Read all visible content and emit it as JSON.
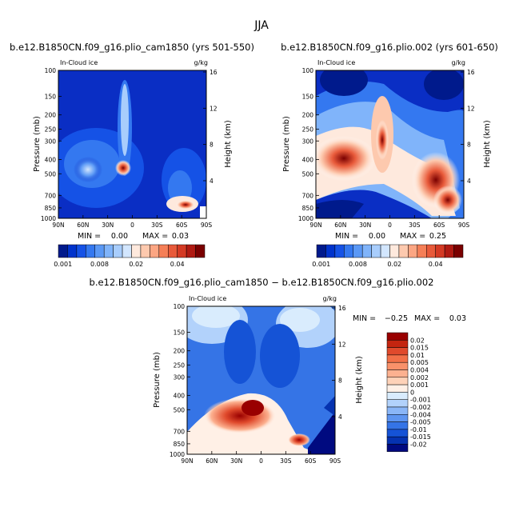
{
  "figure": {
    "title": "JJA"
  },
  "colorbars": {
    "top_labels": [
      "0.001",
      "0.008",
      "0.02",
      "0.04"
    ],
    "top_colors": [
      "#001a8c",
      "#0033cc",
      "#1552e6",
      "#3478f0",
      "#5a98f5",
      "#80b4fa",
      "#a8cdfc",
      "#d2e6fe",
      "#fee9dd",
      "#fdc9ae",
      "#fca683",
      "#f57f57",
      "#e85a3a",
      "#d43a24",
      "#b01a12",
      "#7a0000"
    ],
    "diff_labels": [
      "0.02",
      "0.015",
      "0.01",
      "0.005",
      "0.004",
      "0.002",
      "0.001",
      "0",
      "-0.001",
      "-0.002",
      "-0.004",
      "-0.005",
      "-0.01",
      "-0.015",
      "-0.02"
    ],
    "diff_colors": [
      "#990000",
      "#c42510",
      "#e04a2c",
      "#f27048",
      "#f9916a",
      "#fcb190",
      "#fed2b8",
      "#fff0e6",
      "#d9ecfd",
      "#b2d2fb",
      "#8ab6f7",
      "#5e95f0",
      "#3574e6",
      "#1553d6",
      "#0532b0",
      "#000a80"
    ]
  },
  "chart_data": [
    {
      "type": "heatmap",
      "title": "b.e12.B1850CN.f09_g16.plio_cam1850 (yrs 501-550)",
      "field_label": "In-Cloud ice",
      "units": "g/kg",
      "ylabel": "Pressure (mb)",
      "y2label": "Height (km)",
      "x_ticks": [
        "90N",
        "60N",
        "30N",
        "0",
        "30S",
        "60S",
        "90S"
      ],
      "y_ticks": [
        "100",
        "150",
        "200",
        "250",
        "300",
        "400",
        "500",
        "700",
        "850",
        "1000"
      ],
      "y2_ticks": [
        "16",
        "12",
        "8",
        "4"
      ],
      "min_label": "MIN =",
      "min": "0.00",
      "max_label": "MAX =",
      "max": "0.03",
      "ylim": [
        1000,
        100
      ]
    },
    {
      "type": "heatmap",
      "title": "b.e12.B1850CN.f09_g16.plio.002 (yrs 601-650)",
      "field_label": "In-Cloud ice",
      "units": "g/kg",
      "ylabel": "Pressure (mb)",
      "y2label": "Height (km)",
      "x_ticks": [
        "90N",
        "60N",
        "30N",
        "0",
        "30S",
        "60S",
        "90S"
      ],
      "y_ticks": [
        "100",
        "150",
        "200",
        "250",
        "300",
        "400",
        "500",
        "700",
        "850",
        "1000"
      ],
      "y2_ticks": [
        "16",
        "12",
        "8",
        "4"
      ],
      "min_label": "MIN =",
      "min": "0.00",
      "max_label": "MAX =",
      "max": "0.25",
      "ylim": [
        1000,
        100
      ]
    },
    {
      "type": "heatmap",
      "title": "b.e12.B1850CN.f09_g16.plio_cam1850 − b.e12.B1850CN.f09_g16.plio.002",
      "field_label": "In-Cloud ice",
      "units": "g/kg",
      "ylabel": "Pressure (mb)",
      "y2label": "Height (km)",
      "x_ticks": [
        "90N",
        "60N",
        "30N",
        "0",
        "30S",
        "60S",
        "90S"
      ],
      "y_ticks": [
        "100",
        "150",
        "200",
        "250",
        "300",
        "400",
        "500",
        "700",
        "850",
        "1000"
      ],
      "y2_ticks": [
        "16",
        "12",
        "8",
        "4"
      ],
      "min_label": "MIN =",
      "min": "−0.25",
      "max_label": "MAX =",
      "max": "0.03",
      "ylim": [
        1000,
        100
      ]
    }
  ]
}
